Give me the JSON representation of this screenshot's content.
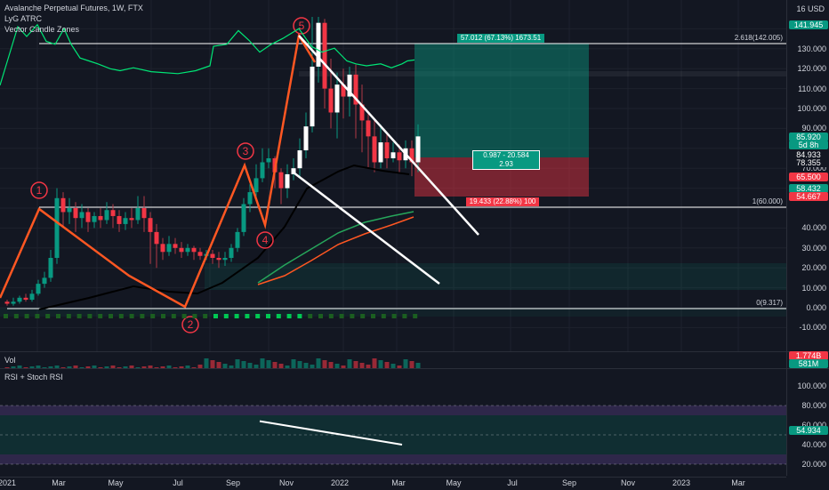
{
  "header": {
    "title": "Avalanche Perpetual Futures, 1W, FTX",
    "indicators": [
      "LyG ATRC",
      "Vector Candle Zones"
    ]
  },
  "price_axis": {
    "unit_label": "16 USD",
    "ticks": [
      "130.000",
      "120.000",
      "110.000",
      "100.000",
      "90.000",
      "70.000",
      "40.000",
      "30.000",
      "20.000",
      "10.000",
      "0.000",
      "-10.000"
    ],
    "ticks_value": [
      130,
      120,
      110,
      100,
      90,
      70,
      40,
      30,
      20,
      10,
      0,
      -10
    ],
    "tags": [
      {
        "label": "141.945",
        "value": 141.945,
        "color": "#089981"
      },
      {
        "label": "85.920",
        "value": 85.92,
        "color": "#089981"
      },
      {
        "label": "5d 8h",
        "value": 81.5,
        "color": "#089981"
      },
      {
        "label": "84.933",
        "value": 76.9,
        "color": "#131722"
      },
      {
        "label": "78.355",
        "value": 72.6,
        "color": "#131722"
      },
      {
        "label": "65.500",
        "value": 65.5,
        "color": "#f23645"
      },
      {
        "label": "58.432",
        "value": 60.0,
        "color": "#089981"
      },
      {
        "label": "54.667",
        "value": 55.6,
        "color": "#f23645"
      }
    ]
  },
  "fib_labels": {
    "top": "2.618(142.005)",
    "mid": "1(60.000)",
    "bottom": "0(9.317)"
  },
  "wave_labels": [
    "1",
    "2",
    "3",
    "4",
    "5"
  ],
  "position": {
    "target_label": "57.012 (67.13%) 1673.51",
    "center_label_1": "0.987 - 20.584",
    "center_label_2": "2.93",
    "stop_label": "19.433 (22.88%) 100"
  },
  "volume": {
    "label": "Vol",
    "tags": [
      {
        "label": "1.774B",
        "color": "#f23645"
      },
      {
        "label": "581M",
        "color": "#089981"
      }
    ]
  },
  "rsi": {
    "label": "RSI + Stoch RSI",
    "ticks": [
      "100.000",
      "80.000",
      "60.000",
      "40.000",
      "20.000"
    ],
    "ticks_value": [
      100,
      80,
      60,
      40,
      20
    ],
    "tag": "54.934",
    "tag_value": 54.934
  },
  "time_axis": {
    "labels": [
      "2021",
      "Mar",
      "May",
      "Jul",
      "Sep",
      "Nov",
      "2022",
      "Mar",
      "May",
      "Jul",
      "Sep",
      "Nov",
      "2023",
      "Mar"
    ]
  },
  "colors": {
    "up": "#089981",
    "down": "#f23645",
    "wave": "#ff5722",
    "background": "#131722"
  }
}
